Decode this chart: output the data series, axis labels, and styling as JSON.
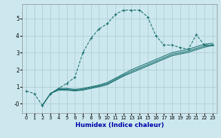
{
  "xlabel": "Humidex (Indice chaleur)",
  "ylabel": "",
  "background_color": "#cce8ee",
  "grid_color": "#aac8d0",
  "line_color": "#1a7070",
  "xlim": [
    -0.5,
    23.5
  ],
  "ylim": [
    -0.55,
    5.85
  ],
  "xticks": [
    0,
    1,
    2,
    3,
    4,
    5,
    6,
    7,
    8,
    9,
    10,
    11,
    12,
    13,
    14,
    15,
    16,
    17,
    18,
    19,
    20,
    21,
    22,
    23
  ],
  "yticks": [
    0,
    1,
    2,
    3,
    4,
    5
  ],
  "ytick_labels": [
    "-0",
    "1",
    "2",
    "3",
    "4",
    "5"
  ],
  "curve1_x": [
    0,
    1,
    2,
    3,
    4,
    5,
    6,
    7,
    8,
    9,
    10,
    11,
    12,
    13,
    14,
    15,
    16,
    17,
    18,
    19,
    20,
    21,
    22,
    23
  ],
  "curve1_y": [
    0.75,
    0.6,
    -0.1,
    0.6,
    0.9,
    1.2,
    1.55,
    3.0,
    3.85,
    4.4,
    4.7,
    5.25,
    5.5,
    5.5,
    5.5,
    5.1,
    4.0,
    3.45,
    3.45,
    3.3,
    3.2,
    4.05,
    3.45,
    3.45
  ],
  "curve2_x": [
    2,
    3,
    4,
    5,
    6,
    7,
    8,
    9,
    10,
    11,
    12,
    13,
    14,
    15,
    16,
    17,
    18,
    19,
    20,
    21,
    22,
    23
  ],
  "curve2_y": [
    -0.1,
    0.6,
    0.9,
    0.9,
    0.85,
    0.9,
    1.0,
    1.1,
    1.25,
    1.5,
    1.75,
    2.0,
    2.2,
    2.4,
    2.6,
    2.8,
    3.0,
    3.1,
    3.2,
    3.35,
    3.5,
    3.55
  ],
  "curve3_x": [
    2,
    3,
    4,
    5,
    6,
    7,
    8,
    9,
    10,
    11,
    12,
    13,
    14,
    15,
    16,
    17,
    18,
    19,
    20,
    21,
    22,
    23
  ],
  "curve3_y": [
    -0.1,
    0.6,
    0.85,
    0.85,
    0.8,
    0.85,
    0.95,
    1.05,
    1.18,
    1.43,
    1.68,
    1.9,
    2.1,
    2.3,
    2.5,
    2.7,
    2.9,
    3.0,
    3.1,
    3.25,
    3.4,
    3.45
  ],
  "curve4_x": [
    2,
    3,
    4,
    5,
    6,
    7,
    8,
    9,
    10,
    11,
    12,
    13,
    14,
    15,
    16,
    17,
    18,
    19,
    20,
    21,
    22,
    23
  ],
  "curve4_y": [
    -0.1,
    0.6,
    0.8,
    0.8,
    0.75,
    0.8,
    0.9,
    1.0,
    1.12,
    1.37,
    1.62,
    1.82,
    2.02,
    2.22,
    2.42,
    2.62,
    2.82,
    2.92,
    3.02,
    3.17,
    3.32,
    3.42
  ]
}
